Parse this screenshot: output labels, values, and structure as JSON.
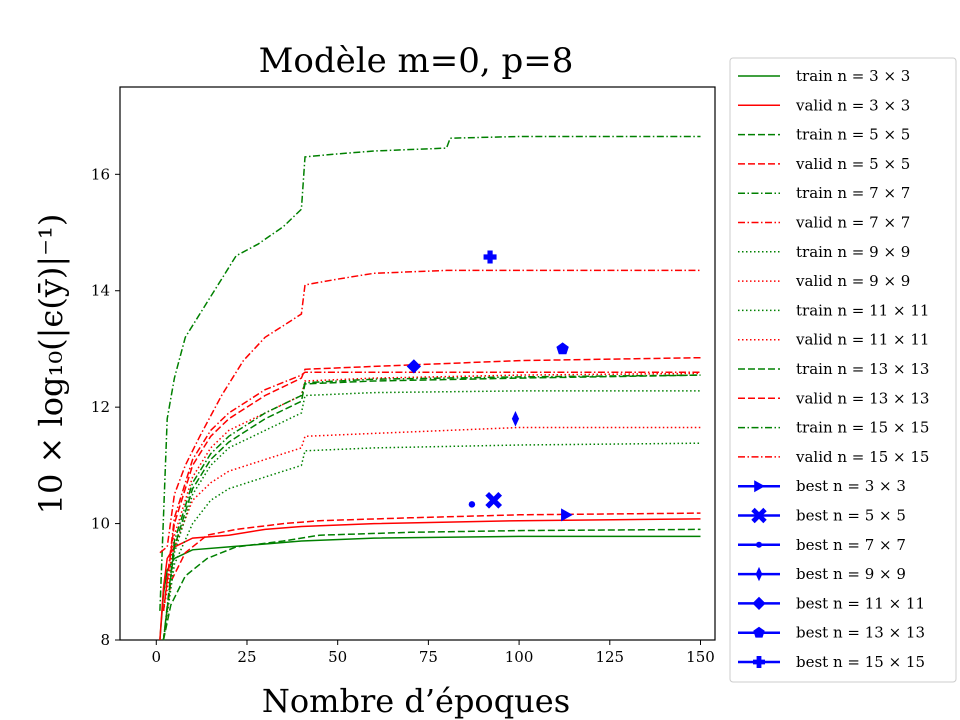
{
  "chart_data": {
    "type": "line",
    "title": "Modèle m=0, p=8",
    "xlabel": "Nombre d’époques",
    "ylabel": "10 × log₁₀(|ϵ(ȳ)|⁻¹)",
    "xlim": [
      -10,
      154
    ],
    "ylim": [
      8,
      17.5
    ],
    "x_ticks": [
      0,
      25,
      50,
      75,
      100,
      125,
      150
    ],
    "y_ticks": [
      8,
      10,
      12,
      14,
      16
    ],
    "grid": false,
    "legend_position": "outside-right",
    "colors": {
      "train": "#008000",
      "valid": "#ff0000",
      "best": "#0000ff"
    },
    "series": [
      {
        "name": "train n = 3 × 3",
        "role": "train",
        "dash": "solid",
        "points": [
          [
            1,
            8
          ],
          [
            2,
            8.8
          ],
          [
            3,
            9.2
          ],
          [
            5,
            9.4
          ],
          [
            10,
            9.55
          ],
          [
            20,
            9.6
          ],
          [
            30,
            9.65
          ],
          [
            40,
            9.7
          ],
          [
            60,
            9.75
          ],
          [
            100,
            9.78
          ],
          [
            150,
            9.78
          ]
        ]
      },
      {
        "name": "valid n = 3 × 3",
        "role": "valid",
        "dash": "solid",
        "points": [
          [
            1,
            8
          ],
          [
            2,
            8.9
          ],
          [
            3,
            9.4
          ],
          [
            5,
            9.6
          ],
          [
            10,
            9.75
          ],
          [
            20,
            9.8
          ],
          [
            30,
            9.9
          ],
          [
            40,
            9.95
          ],
          [
            60,
            10.0
          ],
          [
            100,
            10.05
          ],
          [
            150,
            10.08
          ]
        ]
      },
      {
        "name": "train n = 5 × 5",
        "role": "train",
        "dash": "dashed",
        "points": [
          [
            2,
            8
          ],
          [
            4,
            8.6
          ],
          [
            8,
            9.1
          ],
          [
            14,
            9.4
          ],
          [
            22,
            9.6
          ],
          [
            35,
            9.7
          ],
          [
            45,
            9.8
          ],
          [
            70,
            9.85
          ],
          [
            100,
            9.88
          ],
          [
            150,
            9.9
          ]
        ]
      },
      {
        "name": "valid n = 5 × 5",
        "role": "valid",
        "dash": "dashed",
        "points": [
          [
            2,
            8
          ],
          [
            4,
            9.0
          ],
          [
            8,
            9.5
          ],
          [
            14,
            9.8
          ],
          [
            22,
            9.9
          ],
          [
            35,
            10.0
          ],
          [
            45,
            10.05
          ],
          [
            70,
            10.1
          ],
          [
            100,
            10.15
          ],
          [
            150,
            10.18
          ]
        ]
      },
      {
        "name": "train n = 7 × 7",
        "role": "train",
        "dash": "dashdot",
        "points": [
          [
            1,
            8.5
          ],
          [
            3,
            11.8
          ],
          [
            5,
            12.5
          ],
          [
            8,
            13.2
          ],
          [
            12,
            13.6
          ],
          [
            18,
            14.2
          ],
          [
            22,
            14.6
          ],
          [
            28,
            14.8
          ],
          [
            35,
            15.1
          ],
          [
            40,
            15.4
          ],
          [
            41,
            16.3
          ],
          [
            50,
            16.35
          ],
          [
            60,
            16.4
          ],
          [
            80,
            16.45
          ],
          [
            81,
            16.62
          ],
          [
            100,
            16.65
          ],
          [
            150,
            16.65
          ]
        ]
      },
      {
        "name": "valid n = 7 × 7",
        "role": "valid",
        "dash": "dashdot",
        "points": [
          [
            1,
            9.5
          ],
          [
            3,
            9.6
          ],
          [
            5,
            10.5
          ],
          [
            8,
            11.0
          ],
          [
            12,
            11.5
          ],
          [
            18,
            12.2
          ],
          [
            24,
            12.8
          ],
          [
            30,
            13.2
          ],
          [
            35,
            13.4
          ],
          [
            40,
            13.6
          ],
          [
            41,
            14.1
          ],
          [
            50,
            14.2
          ],
          [
            60,
            14.3
          ],
          [
            80,
            14.35
          ],
          [
            100,
            14.35
          ],
          [
            150,
            14.35
          ]
        ]
      },
      {
        "name": "train n = 9 × 9",
        "role": "train",
        "dash": "dotted",
        "points": [
          [
            2,
            8
          ],
          [
            5,
            9.3
          ],
          [
            10,
            10.0
          ],
          [
            15,
            10.4
          ],
          [
            20,
            10.6
          ],
          [
            30,
            10.8
          ],
          [
            40,
            11.0
          ],
          [
            41,
            11.25
          ],
          [
            60,
            11.3
          ],
          [
            100,
            11.35
          ],
          [
            150,
            11.38
          ]
        ]
      },
      {
        "name": "valid n = 9 × 9",
        "role": "valid",
        "dash": "dotted",
        "points": [
          [
            2,
            8.5
          ],
          [
            5,
            9.6
          ],
          [
            10,
            10.4
          ],
          [
            15,
            10.7
          ],
          [
            20,
            10.9
          ],
          [
            30,
            11.1
          ],
          [
            40,
            11.3
          ],
          [
            41,
            11.5
          ],
          [
            60,
            11.55
          ],
          [
            100,
            11.65
          ],
          [
            150,
            11.65
          ]
        ]
      },
      {
        "name": "train n = 11 × 11",
        "role": "train",
        "dash": "dotted",
        "points": [
          [
            2,
            8
          ],
          [
            5,
            9.5
          ],
          [
            10,
            10.5
          ],
          [
            15,
            11.0
          ],
          [
            20,
            11.3
          ],
          [
            30,
            11.6
          ],
          [
            40,
            11.9
          ],
          [
            41,
            12.2
          ],
          [
            60,
            12.25
          ],
          [
            100,
            12.28
          ],
          [
            150,
            12.28
          ]
        ]
      },
      {
        "name": "valid n = 11 × 11",
        "role": "valid",
        "dash": "dotted",
        "points": [
          [
            2,
            8.5
          ],
          [
            5,
            9.8
          ],
          [
            10,
            10.8
          ],
          [
            15,
            11.3
          ],
          [
            20,
            11.6
          ],
          [
            30,
            11.9
          ],
          [
            40,
            12.2
          ],
          [
            41,
            12.45
          ],
          [
            60,
            12.5
          ],
          [
            100,
            12.55
          ],
          [
            150,
            12.58
          ]
        ]
      },
      {
        "name": "train n = 13 × 13",
        "role": "train",
        "dash": "dashed",
        "points": [
          [
            2,
            8
          ],
          [
            5,
            9.6
          ],
          [
            10,
            10.6
          ],
          [
            15,
            11.1
          ],
          [
            20,
            11.4
          ],
          [
            30,
            11.8
          ],
          [
            40,
            12.1
          ],
          [
            41,
            12.4
          ],
          [
            60,
            12.45
          ],
          [
            100,
            12.5
          ],
          [
            150,
            12.55
          ]
        ]
      },
      {
        "name": "valid n = 13 × 13",
        "role": "valid",
        "dash": "dashed",
        "points": [
          [
            2,
            8.5
          ],
          [
            5,
            10.0
          ],
          [
            10,
            11.0
          ],
          [
            15,
            11.5
          ],
          [
            20,
            11.8
          ],
          [
            30,
            12.2
          ],
          [
            40,
            12.5
          ],
          [
            41,
            12.65
          ],
          [
            60,
            12.7
          ],
          [
            100,
            12.8
          ],
          [
            150,
            12.85
          ]
        ]
      },
      {
        "name": "train n = 15 × 15",
        "role": "train",
        "dash": "dashdot",
        "points": [
          [
            2,
            8
          ],
          [
            5,
            9.7
          ],
          [
            10,
            10.7
          ],
          [
            15,
            11.2
          ],
          [
            20,
            11.5
          ],
          [
            30,
            11.9
          ],
          [
            40,
            12.2
          ],
          [
            41,
            12.42
          ],
          [
            60,
            12.48
          ],
          [
            100,
            12.52
          ],
          [
            150,
            12.55
          ]
        ]
      },
      {
        "name": "valid n = 15 × 15",
        "role": "valid",
        "dash": "dashdot",
        "points": [
          [
            2,
            8.5
          ],
          [
            5,
            10.1
          ],
          [
            10,
            11.1
          ],
          [
            15,
            11.6
          ],
          [
            20,
            11.9
          ],
          [
            30,
            12.3
          ],
          [
            40,
            12.55
          ],
          [
            41,
            12.6
          ],
          [
            60,
            12.6
          ],
          [
            100,
            12.6
          ],
          [
            150,
            12.6
          ]
        ]
      }
    ],
    "best_points": [
      {
        "name": "best n = 3 × 3",
        "marker": "triangle-right",
        "x": 113,
        "y": 10.15
      },
      {
        "name": "best n = 5 × 5",
        "marker": "x",
        "x": 93,
        "y": 10.4
      },
      {
        "name": "best n = 7 × 7",
        "marker": "dot",
        "x": 87,
        "y": 10.33
      },
      {
        "name": "best n = 9 × 9",
        "marker": "thin-diamond",
        "x": 99,
        "y": 11.8
      },
      {
        "name": "best n = 11 × 11",
        "marker": "diamond",
        "x": 71,
        "y": 12.7
      },
      {
        "name": "best n = 13 × 13",
        "marker": "pentagon",
        "x": 112,
        "y": 13.0
      },
      {
        "name": "best n = 15 × 15",
        "marker": "plus",
        "x": 92,
        "y": 14.58
      }
    ]
  }
}
